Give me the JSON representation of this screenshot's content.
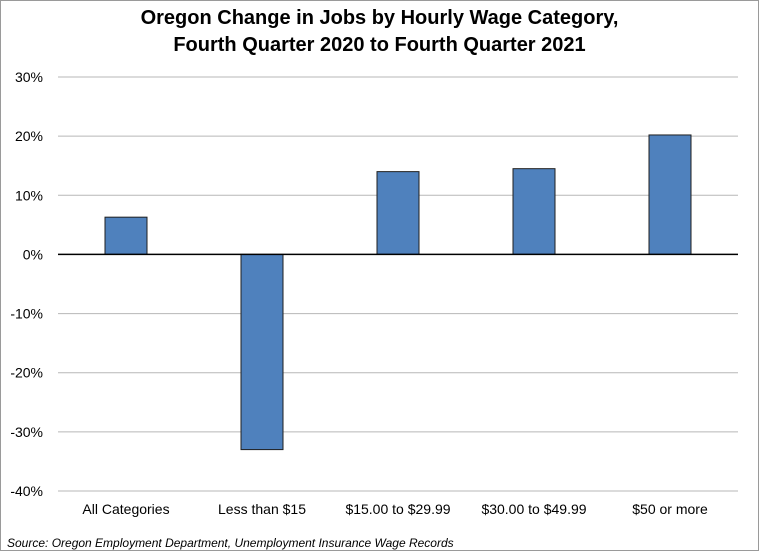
{
  "chart_data": {
    "type": "bar",
    "title_lines": [
      "Oregon Change in Jobs by Hourly Wage Category,",
      "Fourth Quarter 2020 to Fourth Quarter 2021"
    ],
    "categories": [
      "All Categories",
      "Less than $15",
      "$15.00 to $29.99",
      "$30.00 to $49.99",
      "$50 or more"
    ],
    "values": [
      6.3,
      -33.0,
      14.0,
      14.5,
      20.2
    ],
    "value_unit": "%",
    "ylim": [
      -40,
      30
    ],
    "yticks": [
      30,
      20,
      10,
      0,
      -10,
      -20,
      -30,
      -40
    ],
    "ytick_labels": [
      "30%",
      "20%",
      "10%",
      "0%",
      "-10%",
      "-20%",
      "-30%",
      "-40%"
    ],
    "grid": true,
    "bar_color": "#4f81bd",
    "bar_edge_color": "#1f1f1f",
    "grid_color": "#b7b7b7",
    "source": "Source: Oregon Employment Department, Unemployment Insurance Wage Records"
  }
}
